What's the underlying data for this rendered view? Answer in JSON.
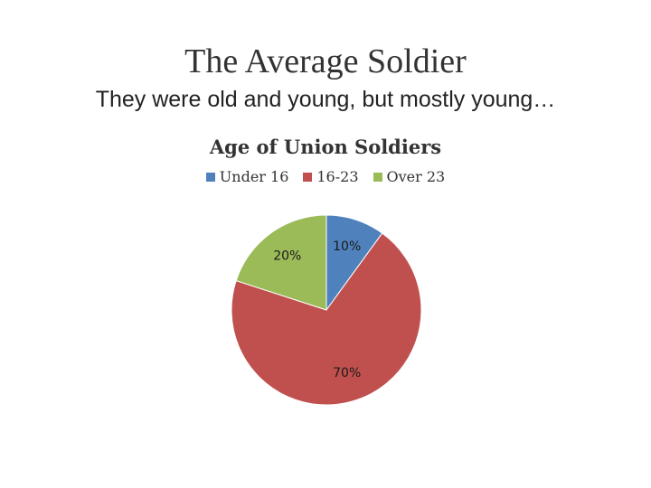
{
  "slide": {
    "title": "The Average Soldier",
    "subtitle": "They were old and young, but mostly young…"
  },
  "chart_data": {
    "type": "pie",
    "title": "Age of Union Soldiers",
    "legend_position": "top",
    "categories": [
      "Under 16",
      "16-23",
      "Over 23"
    ],
    "values": [
      10,
      70,
      20
    ],
    "labels": [
      "10%",
      "70%",
      "20%"
    ],
    "colors": [
      "#4f81bd",
      "#c0504d",
      "#9bbb59"
    ]
  }
}
